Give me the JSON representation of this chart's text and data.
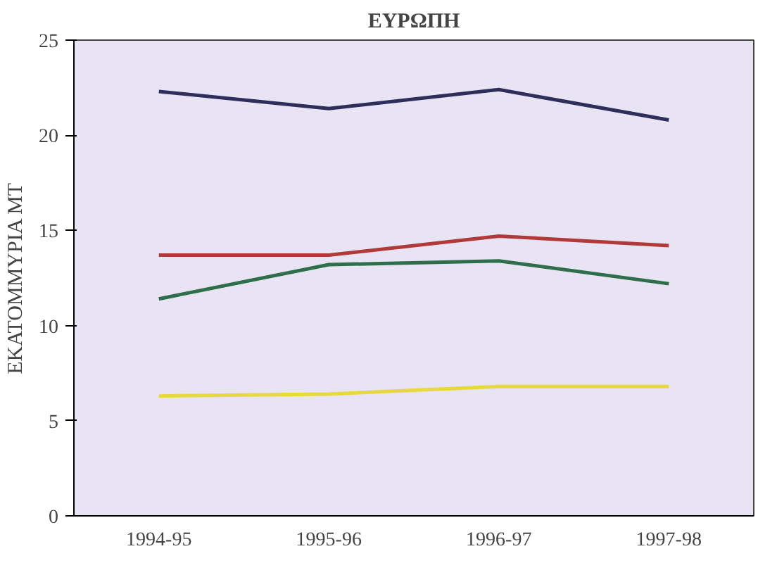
{
  "chart_data": {
    "type": "line",
    "title": "ΕΥΡΩΠΗ",
    "ylabel": "ΕΚΑΤΟΜΜΥΡΙΑ ΜΤ",
    "categories": [
      "1994-95",
      "1995-96",
      "1996-97",
      "1997-98"
    ],
    "series": [
      {
        "color": "#2e2e5a",
        "values": [
          22.3,
          21.4,
          22.4,
          20.8
        ]
      },
      {
        "color": "#b03a3a",
        "values": [
          13.7,
          13.7,
          14.7,
          14.2
        ]
      },
      {
        "color": "#2f6e4a",
        "values": [
          11.4,
          13.2,
          13.4,
          12.2
        ]
      },
      {
        "color": "#e8d840",
        "values": [
          6.3,
          6.4,
          6.8,
          6.8
        ]
      }
    ],
    "ylim": [
      0,
      25
    ],
    "yticks": [
      0,
      5,
      10,
      15,
      20,
      25
    ],
    "grid": false,
    "line_style": "solid"
  }
}
